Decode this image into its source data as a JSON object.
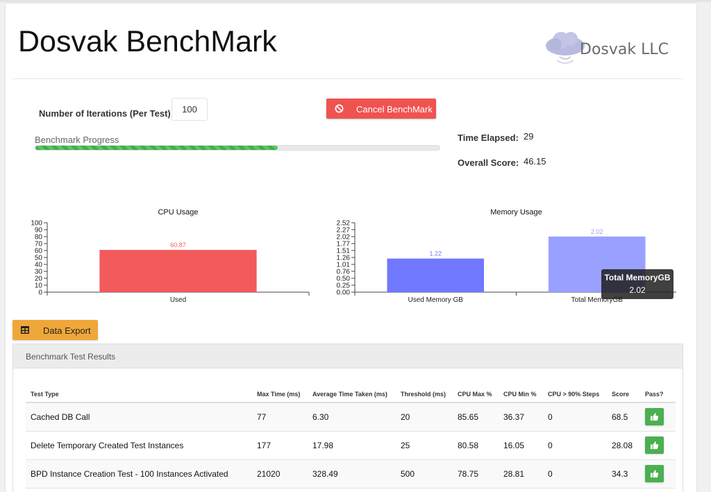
{
  "header": {
    "title": "Dosvak BenchMark",
    "logo_text": "Dosvak LLC"
  },
  "controls": {
    "iterations_label": "Number of Iterations (Per Test)",
    "iterations_value": "100",
    "cancel_label": "Cancel BenchMark",
    "progress_label": "Benchmark Progress",
    "progress_fraction": 0.6
  },
  "stats": {
    "time_elapsed_label": "Time Elapsed:",
    "time_elapsed_value": "29",
    "overall_score_label": "Overall Score:",
    "overall_score_value": "46.15"
  },
  "colors": {
    "accent_red": "#ef5350",
    "accent_orange": "#f0a73a",
    "accent_green": "#4caf50",
    "cpu_bar": "#f25a5c",
    "mem_bar1": "#7078ff",
    "mem_bar2": "#9aa0ff"
  },
  "chart_data": [
    {
      "type": "bar",
      "title": "CPU Usage",
      "categories": [
        "Used"
      ],
      "values": [
        60.87
      ],
      "ylim": [
        0,
        100
      ],
      "yticks": [
        "100",
        "90",
        "80",
        "70",
        "60",
        "50",
        "40",
        "30",
        "20",
        "10",
        "0"
      ],
      "data_labels": [
        "60.87"
      ],
      "grid": false
    },
    {
      "type": "bar",
      "title": "Memory Usage",
      "categories": [
        "Used Memory GB",
        "Total MemoryGB"
      ],
      "values": [
        1.22,
        2.02
      ],
      "ylim": [
        0,
        2.52
      ],
      "yticks": [
        "2.52",
        "2.27",
        "2.02",
        "1.77",
        "1.51",
        "1.26",
        "1.01",
        "0.76",
        "0.50",
        "0.25",
        "0.00"
      ],
      "data_labels": [
        "1.22",
        "2.02"
      ],
      "grid": false,
      "tooltip": {
        "title": "Total MemoryGB",
        "value": "2.02"
      }
    }
  ],
  "export": {
    "label": "Data Export"
  },
  "results": {
    "panel_title": "Benchmark Test Results",
    "columns": [
      "Test Type",
      "Max Time (ms)",
      "Average Time Taken (ms)",
      "Threshold (ms)",
      "CPU Max %",
      "CPU Min %",
      "CPU > 90% Steps",
      "Score",
      "Pass?"
    ],
    "rows": [
      [
        "Cached DB Call",
        "77",
        "6.30",
        "20",
        "85.65",
        "36.37",
        "0",
        "68.5"
      ],
      [
        "Delete Temporary Created Test Instances",
        "177",
        "17.98",
        "25",
        "80.58",
        "16.05",
        "0",
        "28.08"
      ],
      [
        "BPD Instance Creation Test - 100 Instances Activated",
        "21020",
        "328.49",
        "500",
        "78.75",
        "28.81",
        "0",
        "34.3"
      ]
    ]
  }
}
